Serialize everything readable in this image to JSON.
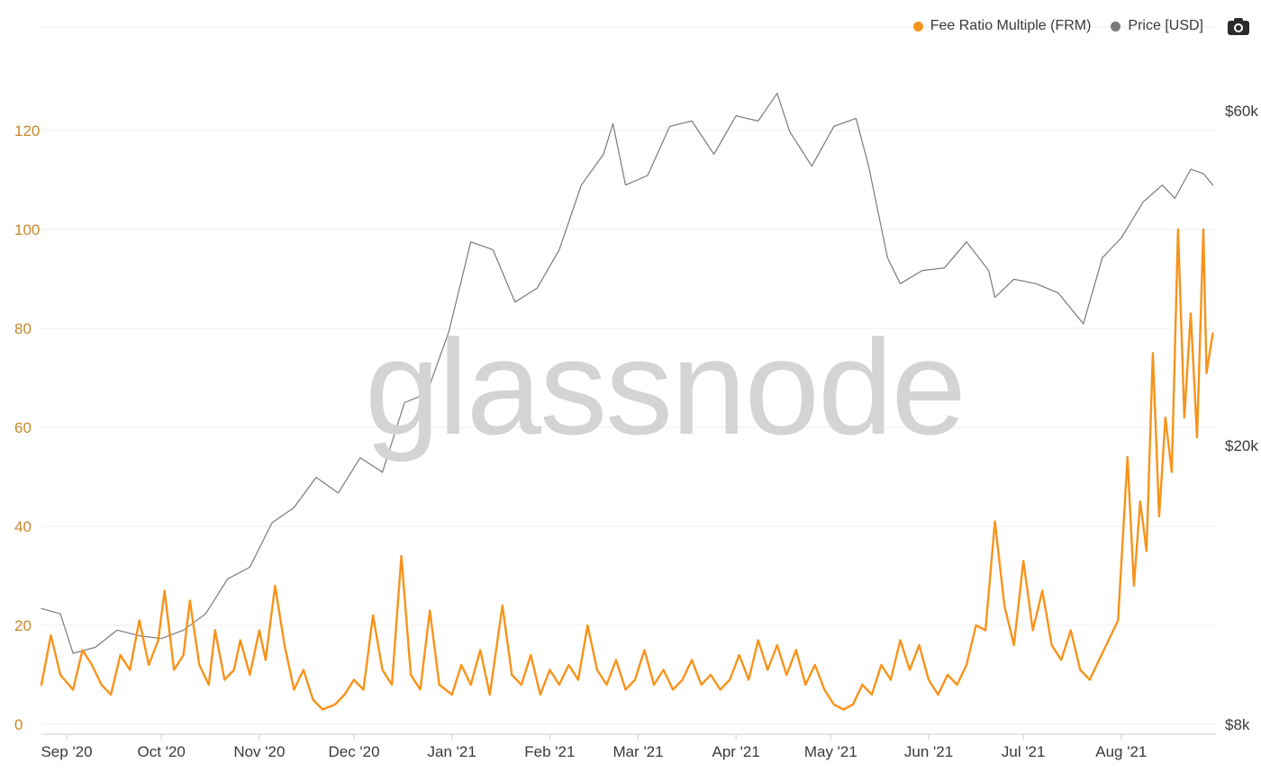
{
  "legend": {
    "frm_label": "Fee Ratio Multiple (FRM)",
    "price_label": "Price [USD]",
    "camera_icon": "camera-icon"
  },
  "watermark": "glassnode",
  "colors": {
    "frm": "#F7931A",
    "price": "#7a7a7a",
    "grid": "#eeeeee",
    "left_tick": "#c9882a",
    "text": "#3a3a3a"
  },
  "chart_data": {
    "type": "line",
    "title": "",
    "xlabel": "",
    "x_ticks": [
      {
        "label": "Sep '20",
        "date": "2020-09-01"
      },
      {
        "label": "Oct '20",
        "date": "2020-10-01"
      },
      {
        "label": "Nov '20",
        "date": "2020-11-01"
      },
      {
        "label": "Dec '20",
        "date": "2020-12-01"
      },
      {
        "label": "Jan '21",
        "date": "2021-01-01"
      },
      {
        "label": "Feb '21",
        "date": "2021-02-01"
      },
      {
        "label": "Mar '21",
        "date": "2021-03-01"
      },
      {
        "label": "Apr '21",
        "date": "2021-04-01"
      },
      {
        "label": "May '21",
        "date": "2021-05-01"
      },
      {
        "label": "Jun '21",
        "date": "2021-06-01"
      },
      {
        "label": "Jul '21",
        "date": "2021-07-01"
      },
      {
        "label": "Aug '21",
        "date": "2021-08-01"
      }
    ],
    "x_range": [
      "2020-08-24",
      "2021-08-31"
    ],
    "y_left": {
      "ticks": [
        0,
        20,
        40,
        60,
        80,
        100,
        120
      ],
      "range": [
        0,
        125
      ]
    },
    "y_right": {
      "scale": "log",
      "ticks": [
        {
          "value": 8000,
          "label": "$8k"
        },
        {
          "value": 20000,
          "label": "$20k"
        },
        {
          "value": 60000,
          "label": "$60k"
        }
      ],
      "range": [
        8000,
        60000
      ]
    },
    "grid": true,
    "legend_position": "top-right",
    "series": [
      {
        "name": "Fee Ratio Multiple (FRM)",
        "axis": "left",
        "color": "#F7931A",
        "points": [
          [
            "2020-08-24",
            8
          ],
          [
            "2020-08-27",
            18
          ],
          [
            "2020-08-30",
            10
          ],
          [
            "2020-09-03",
            7
          ],
          [
            "2020-09-06",
            15
          ],
          [
            "2020-09-09",
            12
          ],
          [
            "2020-09-12",
            8
          ],
          [
            "2020-09-15",
            6
          ],
          [
            "2020-09-18",
            14
          ],
          [
            "2020-09-21",
            11
          ],
          [
            "2020-09-24",
            21
          ],
          [
            "2020-09-27",
            12
          ],
          [
            "2020-09-30",
            17
          ],
          [
            "2020-10-02",
            27
          ],
          [
            "2020-10-05",
            11
          ],
          [
            "2020-10-08",
            14
          ],
          [
            "2020-10-10",
            25
          ],
          [
            "2020-10-13",
            12
          ],
          [
            "2020-10-16",
            8
          ],
          [
            "2020-10-18",
            19
          ],
          [
            "2020-10-21",
            9
          ],
          [
            "2020-10-24",
            11
          ],
          [
            "2020-10-26",
            17
          ],
          [
            "2020-10-29",
            10
          ],
          [
            "2020-11-01",
            19
          ],
          [
            "2020-11-03",
            13
          ],
          [
            "2020-11-06",
            28
          ],
          [
            "2020-11-09",
            16
          ],
          [
            "2020-11-12",
            7
          ],
          [
            "2020-11-15",
            11
          ],
          [
            "2020-11-18",
            5
          ],
          [
            "2020-11-21",
            3
          ],
          [
            "2020-11-25",
            4
          ],
          [
            "2020-11-28",
            6
          ],
          [
            "2020-12-01",
            9
          ],
          [
            "2020-12-04",
            7
          ],
          [
            "2020-12-07",
            22
          ],
          [
            "2020-12-10",
            11
          ],
          [
            "2020-12-13",
            8
          ],
          [
            "2020-12-16",
            34
          ],
          [
            "2020-12-19",
            10
          ],
          [
            "2020-12-22",
            7
          ],
          [
            "2020-12-25",
            23
          ],
          [
            "2020-12-28",
            8
          ],
          [
            "2021-01-01",
            6
          ],
          [
            "2021-01-04",
            12
          ],
          [
            "2021-01-07",
            8
          ],
          [
            "2021-01-10",
            15
          ],
          [
            "2021-01-13",
            6
          ],
          [
            "2021-01-17",
            24
          ],
          [
            "2021-01-20",
            10
          ],
          [
            "2021-01-23",
            8
          ],
          [
            "2021-01-26",
            14
          ],
          [
            "2021-01-29",
            6
          ],
          [
            "2021-02-01",
            11
          ],
          [
            "2021-02-04",
            8
          ],
          [
            "2021-02-07",
            12
          ],
          [
            "2021-02-10",
            9
          ],
          [
            "2021-02-13",
            20
          ],
          [
            "2021-02-16",
            11
          ],
          [
            "2021-02-19",
            8
          ],
          [
            "2021-02-22",
            13
          ],
          [
            "2021-02-25",
            7
          ],
          [
            "2021-02-28",
            9
          ],
          [
            "2021-03-03",
            15
          ],
          [
            "2021-03-06",
            8
          ],
          [
            "2021-03-09",
            11
          ],
          [
            "2021-03-12",
            7
          ],
          [
            "2021-03-15",
            9
          ],
          [
            "2021-03-18",
            13
          ],
          [
            "2021-03-21",
            8
          ],
          [
            "2021-03-24",
            10
          ],
          [
            "2021-03-27",
            7
          ],
          [
            "2021-03-30",
            9
          ],
          [
            "2021-04-02",
            14
          ],
          [
            "2021-04-05",
            9
          ],
          [
            "2021-04-08",
            17
          ],
          [
            "2021-04-11",
            11
          ],
          [
            "2021-04-14",
            16
          ],
          [
            "2021-04-17",
            10
          ],
          [
            "2021-04-20",
            15
          ],
          [
            "2021-04-23",
            8
          ],
          [
            "2021-04-26",
            12
          ],
          [
            "2021-04-29",
            7
          ],
          [
            "2021-05-02",
            4
          ],
          [
            "2021-05-05",
            3
          ],
          [
            "2021-05-08",
            4
          ],
          [
            "2021-05-11",
            8
          ],
          [
            "2021-05-14",
            6
          ],
          [
            "2021-05-17",
            12
          ],
          [
            "2021-05-20",
            9
          ],
          [
            "2021-05-23",
            17
          ],
          [
            "2021-05-26",
            11
          ],
          [
            "2021-05-29",
            16
          ],
          [
            "2021-06-01",
            9
          ],
          [
            "2021-06-04",
            6
          ],
          [
            "2021-06-07",
            10
          ],
          [
            "2021-06-10",
            8
          ],
          [
            "2021-06-13",
            12
          ],
          [
            "2021-06-16",
            20
          ],
          [
            "2021-06-19",
            19
          ],
          [
            "2021-06-22",
            41
          ],
          [
            "2021-06-25",
            24
          ],
          [
            "2021-06-28",
            16
          ],
          [
            "2021-07-01",
            33
          ],
          [
            "2021-07-04",
            19
          ],
          [
            "2021-07-07",
            27
          ],
          [
            "2021-07-10",
            16
          ],
          [
            "2021-07-13",
            13
          ],
          [
            "2021-07-16",
            19
          ],
          [
            "2021-07-19",
            11
          ],
          [
            "2021-07-22",
            9
          ],
          [
            "2021-07-25",
            13
          ],
          [
            "2021-07-28",
            17
          ],
          [
            "2021-07-31",
            21
          ],
          [
            "2021-08-03",
            54
          ],
          [
            "2021-08-05",
            28
          ],
          [
            "2021-08-07",
            45
          ],
          [
            "2021-08-09",
            35
          ],
          [
            "2021-08-11",
            75
          ],
          [
            "2021-08-13",
            42
          ],
          [
            "2021-08-15",
            62
          ],
          [
            "2021-08-17",
            51
          ],
          [
            "2021-08-19",
            100
          ],
          [
            "2021-08-21",
            62
          ],
          [
            "2021-08-23",
            83
          ],
          [
            "2021-08-25",
            58
          ],
          [
            "2021-08-27",
            100
          ],
          [
            "2021-08-28",
            71
          ],
          [
            "2021-08-30",
            79
          ]
        ]
      },
      {
        "name": "Price [USD]",
        "axis": "right",
        "color": "#7a7a7a",
        "points": [
          [
            "2020-08-24",
            11700
          ],
          [
            "2020-08-30",
            11500
          ],
          [
            "2020-09-03",
            10100
          ],
          [
            "2020-09-10",
            10300
          ],
          [
            "2020-09-17",
            10900
          ],
          [
            "2020-09-24",
            10700
          ],
          [
            "2020-10-01",
            10600
          ],
          [
            "2020-10-08",
            10900
          ],
          [
            "2020-10-15",
            11500
          ],
          [
            "2020-10-22",
            12900
          ],
          [
            "2020-10-29",
            13400
          ],
          [
            "2020-11-05",
            15500
          ],
          [
            "2020-11-12",
            16300
          ],
          [
            "2020-11-19",
            18000
          ],
          [
            "2020-11-26",
            17100
          ],
          [
            "2020-12-03",
            19200
          ],
          [
            "2020-12-10",
            18300
          ],
          [
            "2020-12-17",
            23000
          ],
          [
            "2020-12-24",
            23700
          ],
          [
            "2020-12-31",
            29000
          ],
          [
            "2021-01-07",
            39000
          ],
          [
            "2021-01-14",
            38000
          ],
          [
            "2021-01-21",
            32000
          ],
          [
            "2021-01-28",
            33500
          ],
          [
            "2021-02-04",
            38000
          ],
          [
            "2021-02-11",
            47000
          ],
          [
            "2021-02-18",
            52000
          ],
          [
            "2021-02-21",
            57500
          ],
          [
            "2021-02-25",
            47000
          ],
          [
            "2021-03-04",
            48500
          ],
          [
            "2021-03-11",
            57000
          ],
          [
            "2021-03-18",
            58000
          ],
          [
            "2021-03-25",
            52000
          ],
          [
            "2021-04-01",
            59000
          ],
          [
            "2021-04-08",
            58000
          ],
          [
            "2021-04-14",
            63500
          ],
          [
            "2021-04-18",
            56000
          ],
          [
            "2021-04-25",
            50000
          ],
          [
            "2021-05-02",
            57000
          ],
          [
            "2021-05-09",
            58500
          ],
          [
            "2021-05-13",
            50000
          ],
          [
            "2021-05-19",
            37000
          ],
          [
            "2021-05-23",
            34000
          ],
          [
            "2021-05-30",
            35500
          ],
          [
            "2021-06-06",
            35800
          ],
          [
            "2021-06-13",
            39000
          ],
          [
            "2021-06-20",
            35500
          ],
          [
            "2021-06-22",
            32500
          ],
          [
            "2021-06-28",
            34500
          ],
          [
            "2021-07-05",
            34000
          ],
          [
            "2021-07-12",
            33000
          ],
          [
            "2021-07-20",
            29800
          ],
          [
            "2021-07-26",
            37000
          ],
          [
            "2021-08-01",
            39500
          ],
          [
            "2021-08-08",
            44500
          ],
          [
            "2021-08-14",
            47000
          ],
          [
            "2021-08-18",
            45000
          ],
          [
            "2021-08-23",
            49500
          ],
          [
            "2021-08-27",
            48800
          ],
          [
            "2021-08-30",
            47000
          ]
        ]
      }
    ]
  }
}
